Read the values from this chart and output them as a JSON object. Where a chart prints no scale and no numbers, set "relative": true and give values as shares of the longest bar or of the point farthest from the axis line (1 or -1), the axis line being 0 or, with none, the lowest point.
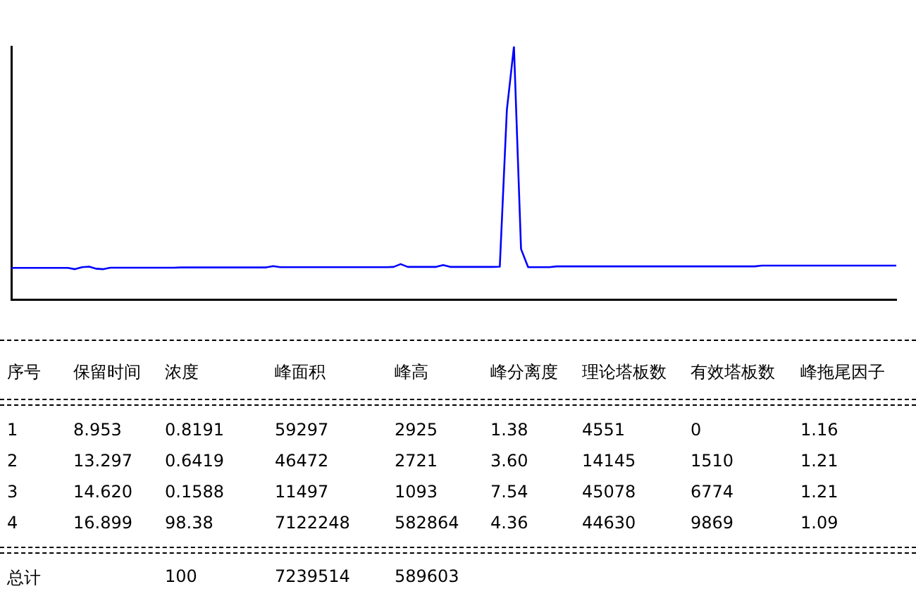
{
  "chart_data": {
    "type": "line",
    "relative": true,
    "grid": false,
    "legend": false,
    "marker": "none",
    "categories": [
      null,
      null,
      null,
      null,
      null,
      null,
      null,
      null,
      null,
      null,
      null,
      null,
      null,
      null,
      null,
      null,
      null,
      null,
      null,
      null,
      null,
      null,
      null,
      null,
      null,
      null,
      null,
      null,
      null,
      null,
      null,
      null,
      null,
      null,
      null,
      null,
      null,
      null,
      null,
      null,
      null,
      null,
      null,
      null,
      null,
      null,
      null,
      null,
      null,
      null,
      null,
      null,
      null,
      null,
      null,
      null,
      null,
      null,
      null,
      null,
      null,
      null,
      null,
      null,
      null,
      null,
      null,
      null,
      null,
      null,
      null,
      null,
      null,
      null,
      null,
      null,
      null,
      null,
      null,
      null,
      null,
      null,
      null,
      null,
      null,
      null,
      null,
      null,
      null,
      null,
      null,
      null,
      null,
      null,
      null,
      null,
      null,
      null,
      null,
      null,
      null,
      null,
      null,
      null,
      null,
      null,
      null,
      null,
      null,
      null,
      null,
      null,
      null,
      null,
      null,
      null,
      null,
      null,
      null,
      null,
      null,
      null,
      null,
      null,
      null,
      null
    ],
    "series": [
      {
        "color": "#0000ff",
        "values": [
          0.125,
          0.125,
          0.125,
          0.125,
          0.125,
          0.125,
          0.125,
          0.125,
          0.125,
          0.12,
          0.128,
          0.13,
          0.122,
          0.12,
          0.126,
          0.126,
          0.126,
          0.126,
          0.126,
          0.126,
          0.126,
          0.126,
          0.126,
          0.126,
          0.127,
          0.127,
          0.127,
          0.127,
          0.127,
          0.127,
          0.127,
          0.127,
          0.127,
          0.127,
          0.127,
          0.127,
          0.127,
          0.132,
          0.128,
          0.128,
          0.128,
          0.128,
          0.128,
          0.128,
          0.128,
          0.128,
          0.128,
          0.128,
          0.128,
          0.128,
          0.128,
          0.128,
          0.128,
          0.128,
          0.129,
          0.14,
          0.129,
          0.129,
          0.129,
          0.129,
          0.129,
          0.136,
          0.129,
          0.129,
          0.129,
          0.129,
          0.129,
          0.129,
          0.129,
          0.13,
          0.75,
          1.0,
          0.2,
          0.128,
          0.128,
          0.128,
          0.128,
          0.131,
          0.131,
          0.131,
          0.131,
          0.131,
          0.131,
          0.131,
          0.131,
          0.131,
          0.131,
          0.131,
          0.131,
          0.131,
          0.131,
          0.131,
          0.131,
          0.131,
          0.131,
          0.131,
          0.131,
          0.131,
          0.131,
          0.131,
          0.131,
          0.131,
          0.131,
          0.131,
          0.131,
          0.131,
          0.134,
          0.134,
          0.134,
          0.134,
          0.134,
          0.134,
          0.134,
          0.134,
          0.134,
          0.134,
          0.134,
          0.134,
          0.134,
          0.134,
          0.134,
          0.134,
          0.134,
          0.134,
          0.134,
          0.134
        ]
      }
    ],
    "annotations": [
      "序号",
      "保留时间",
      "浓度",
      "峰面积",
      "峰高",
      "峰分离度",
      "理论塔板数",
      "有效塔板数",
      "峰拖尾因子",
      "1",
      "8.953",
      "0.8191",
      "59297",
      "2925",
      "1.38",
      "4551",
      "0",
      "1.16",
      "2",
      "13.297",
      "0.6419",
      "46472",
      "2721",
      "3.60",
      "14145",
      "1510",
      "1.21",
      "3",
      "14.620",
      "0.1588",
      "11497",
      "1093",
      "7.54",
      "45078",
      "6774",
      "1.21",
      "4",
      "16.899",
      "98.38",
      "7122248",
      "582864",
      "4.36",
      "44630",
      "9869",
      "1.09",
      "总计",
      "100",
      "7239514",
      "589603"
    ]
  }
}
